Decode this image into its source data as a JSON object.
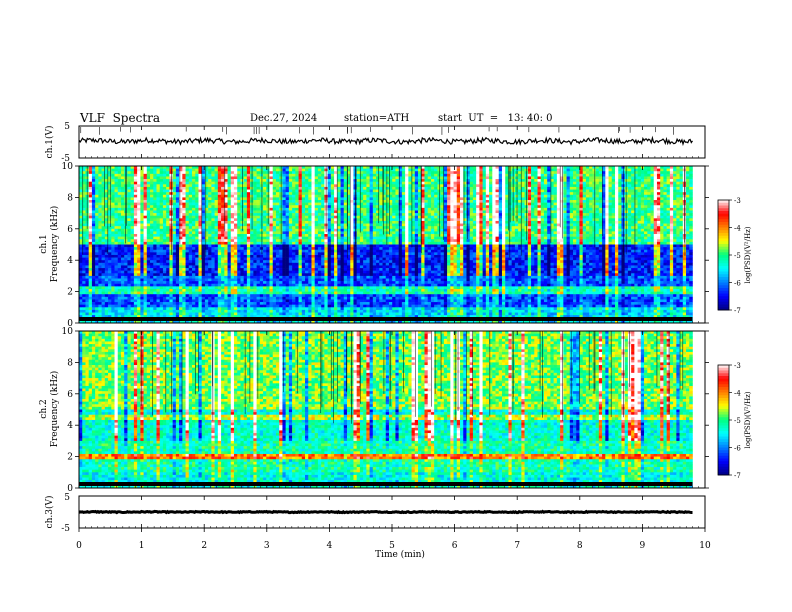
{
  "header": {
    "title": "VLF  Spectra",
    "date": "Dec.27, 2024",
    "station": "station=ATH",
    "start_ut": "start  UT  =   13: 40: 0"
  },
  "chart_data": [
    {
      "type": "line",
      "panel": "ch1-waveform",
      "ylabel": "ch.1(V)",
      "ylim": [
        -5,
        5
      ],
      "yticks": [
        "5",
        "-5"
      ],
      "xlim": [
        0,
        10
      ],
      "series": [
        {
          "mean_level": 0.3,
          "noise_amplitude": 0.8,
          "end_time": 9.8
        }
      ]
    },
    {
      "type": "heatmap",
      "panel": "ch1-spectrogram",
      "ylabel": "ch.1\nFrequency (kHz)",
      "ylim": [
        0,
        10
      ],
      "yticks": [
        "0",
        "2",
        "4",
        "6",
        "8",
        "10"
      ],
      "xlim": [
        0,
        10
      ],
      "colorbar": {
        "label": "log(PSD)(V²/Hz)",
        "range": [
          -7,
          -3
        ],
        "ticks": [
          "-3",
          "-4",
          "-5",
          "-6",
          "-7"
        ]
      }
    },
    {
      "type": "heatmap",
      "panel": "ch2-spectrogram",
      "ylabel": "ch.2\nFrequency (kHz)",
      "ylim": [
        0,
        10
      ],
      "yticks": [
        "0",
        "2",
        "4",
        "6",
        "8",
        "10"
      ],
      "xlim": [
        0,
        10
      ],
      "colorbar": {
        "label": "log(PSD)(V²/Hz)",
        "range": [
          -7,
          -3
        ],
        "ticks": [
          "-3",
          "-4",
          "-5",
          "-6",
          "-7"
        ]
      }
    },
    {
      "type": "line",
      "panel": "ch3-waveform",
      "ylabel": "ch.3(V)",
      "ylim": [
        -5,
        5
      ],
      "yticks": [
        "5",
        "-5"
      ],
      "xlim": [
        0,
        10
      ],
      "series": [
        {
          "mean_level": 0,
          "noise_amplitude": 0.15,
          "end_time": 9.8
        }
      ]
    }
  ],
  "x_axis": {
    "label": "Time  (min)",
    "ticks": [
      "0",
      "1",
      "2",
      "3",
      "4",
      "5",
      "6",
      "7",
      "8",
      "9",
      "10"
    ]
  },
  "colors": {
    "cmap": [
      "#000080",
      "#0000ff",
      "#0080ff",
      "#00ffff",
      "#00ff80",
      "#ffff00",
      "#ff8000",
      "#ff0000",
      "#ffffff"
    ]
  }
}
